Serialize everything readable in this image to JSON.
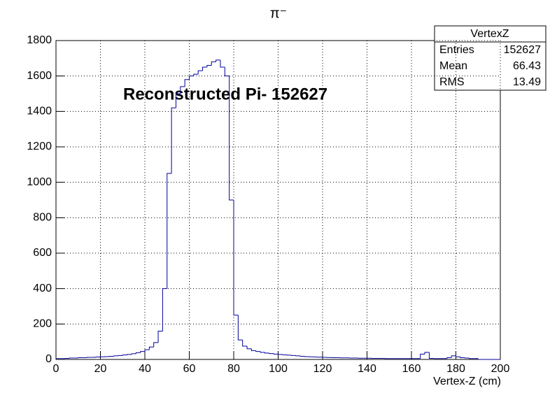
{
  "chart_data": {
    "type": "histogram",
    "title": "π⁻",
    "xlabel": "Vertex-Z (cm)",
    "annotation": "Reconstructed Pi- 152627",
    "color": "#000099",
    "grid": true,
    "xlim": [
      0,
      200
    ],
    "ylim": [
      0,
      1800
    ],
    "xticks": [
      0,
      20,
      40,
      60,
      80,
      100,
      120,
      140,
      160,
      180,
      200
    ],
    "yticks": [
      0,
      200,
      400,
      600,
      800,
      1000,
      1200,
      1400,
      1600,
      1800
    ],
    "bins": [
      0,
      2,
      4,
      6,
      8,
      10,
      12,
      14,
      16,
      18,
      20,
      22,
      24,
      26,
      28,
      30,
      32,
      34,
      36,
      38,
      40,
      42,
      44,
      46,
      48,
      50,
      52,
      54,
      56,
      58,
      60,
      62,
      64,
      66,
      68,
      70,
      72,
      74,
      76,
      78,
      80,
      82,
      84,
      86,
      88,
      90,
      92,
      94,
      96,
      98,
      100,
      102,
      104,
      106,
      108,
      110,
      112,
      114,
      116,
      118,
      120,
      122,
      124,
      126,
      128,
      130,
      132,
      134,
      136,
      138,
      140,
      142,
      144,
      146,
      148,
      150,
      152,
      154,
      156,
      158,
      160,
      162,
      164,
      166,
      168,
      170,
      172,
      174,
      176,
      178,
      180,
      182,
      184,
      186,
      188,
      190,
      192,
      194,
      196,
      198,
      200
    ],
    "values": [
      5,
      5,
      6,
      8,
      8,
      10,
      10,
      12,
      12,
      14,
      15,
      16,
      18,
      20,
      22,
      25,
      28,
      32,
      38,
      45,
      55,
      70,
      95,
      160,
      400,
      1050,
      1420,
      1500,
      1540,
      1580,
      1600,
      1610,
      1630,
      1650,
      1660,
      1680,
      1690,
      1650,
      1600,
      900,
      250,
      110,
      75,
      60,
      50,
      45,
      40,
      36,
      33,
      30,
      28,
      26,
      24,
      22,
      20,
      18,
      16,
      15,
      14,
      13,
      12,
      11,
      10,
      10,
      9,
      9,
      8,
      8,
      7,
      7,
      7,
      6,
      6,
      6,
      5,
      5,
      5,
      5,
      5,
      5,
      5,
      5,
      30,
      40,
      6,
      5,
      5,
      5,
      10,
      20,
      15,
      10,
      8,
      5,
      5,
      0,
      0,
      0,
      0,
      0
    ],
    "stats": {
      "title": "VertexZ",
      "rows": [
        {
          "label": "Entries",
          "value": 152627
        },
        {
          "label": "Mean",
          "value": 66.43
        },
        {
          "label": "RMS",
          "value": 13.49
        }
      ]
    }
  }
}
